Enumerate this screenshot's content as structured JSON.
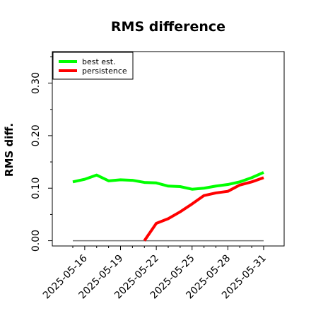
{
  "chart_data": {
    "type": "line",
    "title": "RMS difference",
    "xlabel": "",
    "ylabel": "RMS diff.",
    "x": [
      "2025-05-15",
      "2025-05-16",
      "2025-05-17",
      "2025-05-18",
      "2025-05-19",
      "2025-05-20",
      "2025-05-21",
      "2025-05-22",
      "2025-05-23",
      "2025-05-24",
      "2025-05-25",
      "2025-05-26",
      "2025-05-27",
      "2025-05-28",
      "2025-05-29",
      "2025-05-30",
      "2025-05-31"
    ],
    "x_ticks": [
      "2025-05-16",
      "2025-05-19",
      "2025-05-22",
      "2025-05-25",
      "2025-05-28",
      "2025-05-31"
    ],
    "y_ticks": [
      "0.00",
      "0.10",
      "0.20",
      "0.30"
    ],
    "ylim": [
      -0.01,
      0.36
    ],
    "grid": false,
    "legend_position": "top-left",
    "baseline": {
      "y": 0.0,
      "color": "#707070"
    },
    "series": [
      {
        "name": "best est.",
        "color": "#00ff00",
        "values": [
          0.112,
          0.117,
          0.125,
          0.114,
          0.116,
          0.115,
          0.111,
          0.11,
          0.104,
          0.103,
          0.098,
          0.1,
          0.104,
          0.107,
          0.112,
          0.12,
          0.13
        ]
      },
      {
        "name": "persistence",
        "color": "#ff0000",
        "values": [
          null,
          null,
          null,
          null,
          null,
          null,
          0.0,
          0.033,
          0.042,
          0.055,
          0.07,
          0.086,
          0.091,
          0.094,
          0.106,
          0.112,
          0.12
        ]
      }
    ]
  }
}
